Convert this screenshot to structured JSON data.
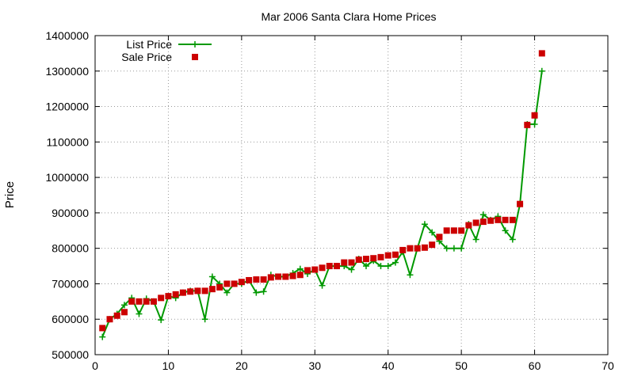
{
  "chart_data": {
    "type": "scatter",
    "title": "Mar 2006 Santa Clara Home Prices",
    "xlabel": "",
    "ylabel": "Price",
    "xlim": [
      0,
      70
    ],
    "ylim": [
      500000,
      1400000
    ],
    "xticks": [
      0,
      10,
      20,
      30,
      40,
      50,
      60,
      70
    ],
    "yticks": [
      500000,
      600000,
      700000,
      800000,
      900000,
      1000000,
      1100000,
      1200000,
      1300000,
      1400000
    ],
    "grid": true,
    "legend_position": "top-left",
    "series": [
      {
        "name": "List Price",
        "style": "line-plus",
        "color": "#009900",
        "x": [
          1,
          2,
          3,
          4,
          5,
          6,
          7,
          8,
          9,
          10,
          11,
          12,
          13,
          14,
          15,
          16,
          17,
          18,
          19,
          20,
          21,
          22,
          23,
          24,
          25,
          26,
          27,
          28,
          29,
          30,
          31,
          32,
          33,
          34,
          35,
          36,
          37,
          38,
          39,
          40,
          41,
          42,
          43,
          44,
          45,
          46,
          47,
          48,
          49,
          50,
          51,
          52,
          53,
          54,
          55,
          56,
          57,
          58,
          59,
          60,
          61
        ],
        "y": [
          550000,
          600000,
          615000,
          640000,
          660000,
          615000,
          658000,
          650000,
          598000,
          665000,
          660000,
          675000,
          680000,
          680000,
          600000,
          720000,
          700000,
          675000,
          700000,
          700000,
          710000,
          675000,
          678000,
          725000,
          720000,
          720000,
          730000,
          742000,
          728000,
          740000,
          695000,
          750000,
          750000,
          750000,
          740000,
          770000,
          750000,
          765000,
          750000,
          750000,
          760000,
          790000,
          725000,
          800000,
          868000,
          845000,
          820000,
          800000,
          800000,
          800000,
          868000,
          825000,
          895000,
          880000,
          890000,
          850000,
          825000,
          925000,
          1150000,
          1150000,
          1300000
        ]
      },
      {
        "name": "Sale Price",
        "style": "square",
        "color": "#cc0000",
        "x": [
          1,
          2,
          3,
          4,
          5,
          6,
          7,
          8,
          9,
          10,
          11,
          12,
          13,
          14,
          15,
          16,
          17,
          18,
          19,
          20,
          21,
          22,
          23,
          24,
          25,
          26,
          27,
          28,
          29,
          30,
          31,
          32,
          33,
          34,
          35,
          36,
          37,
          38,
          39,
          40,
          41,
          42,
          43,
          44,
          45,
          46,
          47,
          48,
          49,
          50,
          51,
          52,
          53,
          54,
          55,
          56,
          57,
          58,
          59,
          60,
          61
        ],
        "y": [
          575000,
          600000,
          610000,
          620000,
          650000,
          650000,
          650000,
          650000,
          660000,
          665000,
          670000,
          675000,
          678000,
          680000,
          680000,
          685000,
          690000,
          700000,
          700000,
          705000,
          710000,
          712000,
          712000,
          718000,
          720000,
          720000,
          722000,
          725000,
          738000,
          740000,
          745000,
          750000,
          750000,
          760000,
          760000,
          768000,
          770000,
          772000,
          775000,
          780000,
          782000,
          795000,
          800000,
          800000,
          802000,
          810000,
          832000,
          850000,
          850000,
          850000,
          865000,
          872000,
          875000,
          878000,
          880000,
          880000,
          880000,
          925000,
          1148000,
          1175000,
          1350000
        ]
      }
    ]
  }
}
